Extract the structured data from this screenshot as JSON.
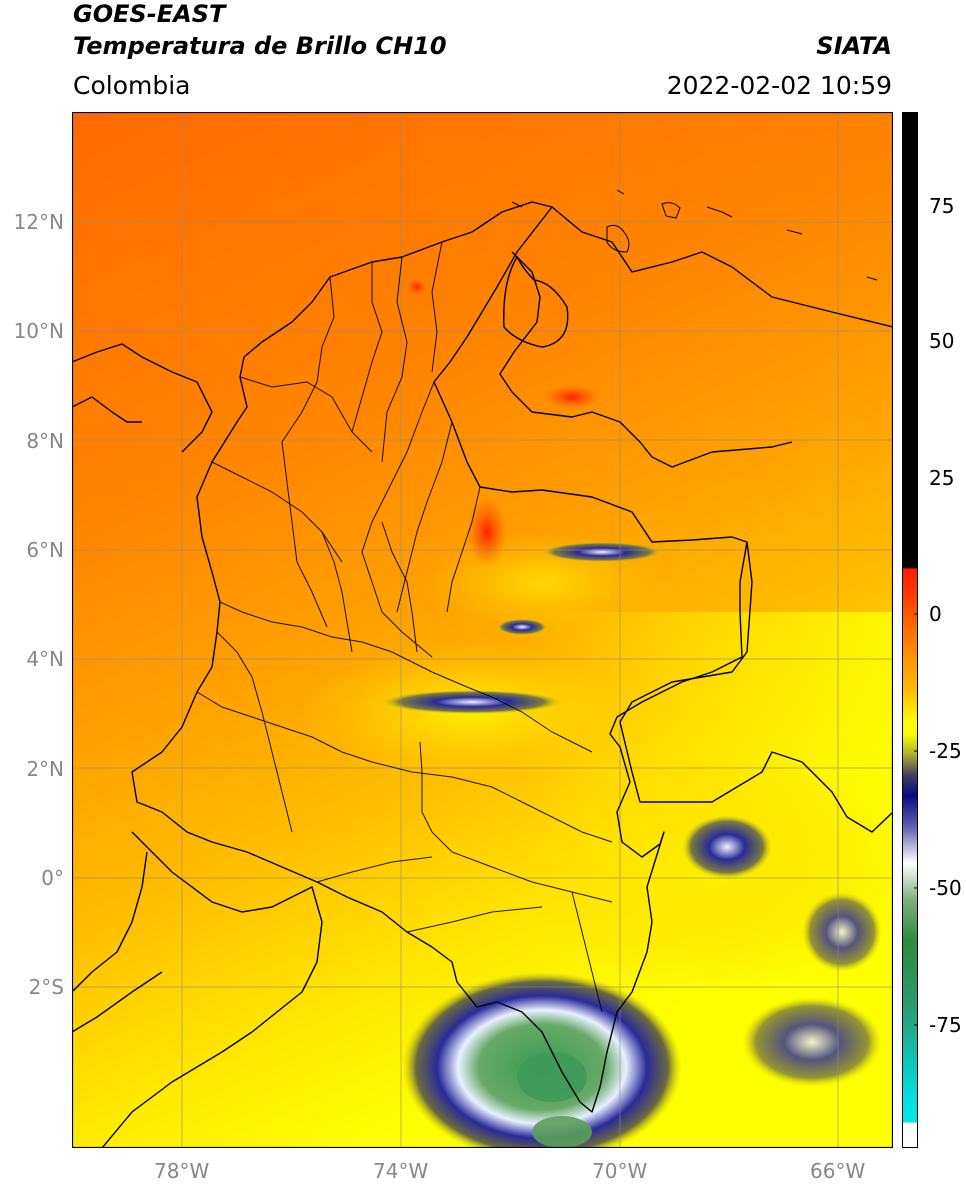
{
  "header": {
    "title_line1": "GOES-EAST",
    "title_line2": "Temperatura de Brillo CH10",
    "region": "Colombia",
    "source": "SIATA",
    "datetime": "2022-02-02 10:59"
  },
  "map": {
    "lon_ticks": [
      "78°W",
      "74°W",
      "70°W",
      "66°W"
    ],
    "lat_ticks": [
      "12°N",
      "10°N",
      "8°N",
      "6°N",
      "4°N",
      "2°N",
      "0°",
      "2°S"
    ]
  },
  "colorbar": {
    "ticks": [
      "75",
      "50",
      "25",
      "0",
      "-25",
      "-50",
      "-75"
    ],
    "colors": {
      "black": "#000000",
      "red": "#ff2a00",
      "orange": "#ff8c00",
      "yellow": "#ffff00",
      "olive": "#9a9a3a",
      "navy": "#0a0a7a",
      "white": "#ffffff",
      "green": "#2e8b3a",
      "cyan": "#00e0e0"
    }
  }
}
